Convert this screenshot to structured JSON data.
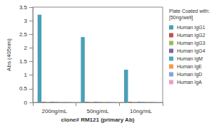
{
  "chart_data": {
    "type": "bar",
    "categories": [
      "200ng/mL",
      "50ng/mL",
      "10ng/mL"
    ],
    "x_label": "clone# RM121 (primary Ab)",
    "y_label": "Abs (405nm)",
    "legend_title": [
      "Plate Coated with:",
      "[50ng/well]"
    ],
    "series": [
      {
        "name": "Human IgG1",
        "color": "#4a9fb5",
        "values": [
          3.22,
          2.4,
          1.2
        ]
      },
      {
        "name": "Human IgG2",
        "color": "#c0504d",
        "values": [
          0.02,
          0.02,
          0.02
        ]
      },
      {
        "name": "Human IgG3",
        "color": "#9bbb59",
        "values": [
          0.02,
          0.02,
          0.02
        ]
      },
      {
        "name": "Human IgG4",
        "color": "#8064a2",
        "values": [
          0.02,
          0.02,
          0.02
        ]
      },
      {
        "name": "Human IgM",
        "color": "#4bacc6",
        "values": [
          0.02,
          0.02,
          0.02
        ]
      },
      {
        "name": "Human IgE",
        "color": "#f79646",
        "values": [
          0.02,
          0.02,
          0.02
        ]
      },
      {
        "name": "Human IgD",
        "color": "#7fa7d9",
        "values": [
          0.02,
          0.02,
          0.02
        ]
      },
      {
        "name": "Human IgA",
        "color": "#e6a0c4",
        "values": [
          0.03,
          0.02,
          0.02
        ]
      }
    ],
    "ylim": [
      0,
      3.5
    ],
    "yticks": [
      0,
      0.5,
      1,
      1.5,
      2,
      2.5,
      3,
      3.5
    ],
    "grid": false,
    "legend": "right"
  }
}
